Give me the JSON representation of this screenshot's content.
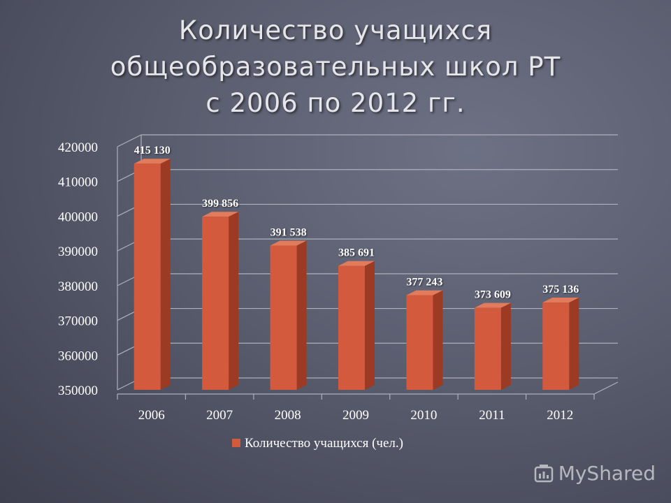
{
  "title_lines": [
    "Количество учащихся",
    "общеобразовательных школ РТ",
    "с 2006 по 2012 гг."
  ],
  "watermark": "MyShared",
  "colors": {
    "bar_front": "#d35a3c",
    "bar_side": "#9c3a23",
    "bar_top": "#e27a5c",
    "grid": "#aeb0bb",
    "text": "#ffffff"
  },
  "chart_data": {
    "type": "bar",
    "title": "Количество учащихся общеобразовательных школ РТ с 2006 по 2012 гг.",
    "categories": [
      "2006",
      "2007",
      "2008",
      "2009",
      "2010",
      "2011",
      "2012"
    ],
    "series": [
      {
        "name": "Количество учащихся (чел.)",
        "values": [
          415130,
          399856,
          391538,
          385691,
          377243,
          373609,
          375136
        ],
        "data_labels": [
          "415 130",
          "399 856",
          "391 538",
          "385 691",
          "377 243",
          "373 609",
          "375 136"
        ]
      }
    ],
    "yticks": [
      "350000",
      "360000",
      "370000",
      "380000",
      "390000",
      "400000",
      "410000",
      "420000"
    ],
    "ylim": [
      350000,
      420000
    ],
    "grid": true,
    "legend_position": "bottom"
  }
}
